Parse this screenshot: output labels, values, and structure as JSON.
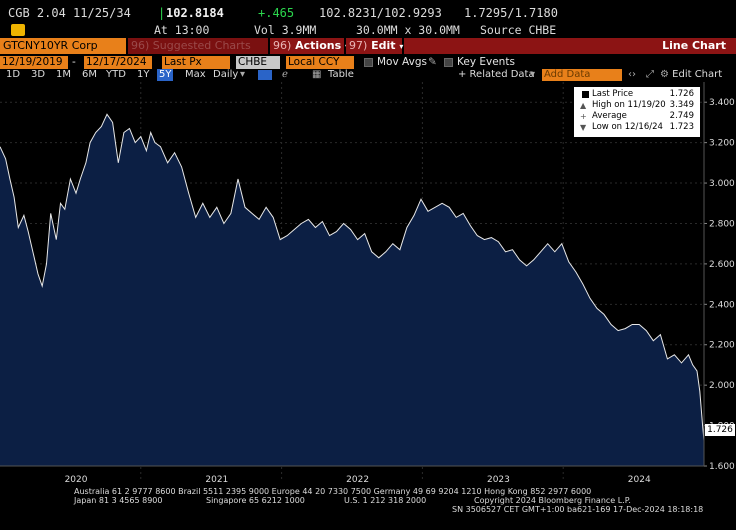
{
  "quote": {
    "security": "CGB 2.04 11/25/34",
    "price": "102.8184",
    "change": "+.465",
    "bid_ask": "102.8231/102.9293",
    "yields": "1.7295/1.7180",
    "time": "At 13:00",
    "volume": "Vol 3.9MM",
    "sizes": "30.0MM x 30.0MM",
    "source": "Source CHBE"
  },
  "toolbar": {
    "ticker": "GTCNY10YR Corp",
    "suggested": "96) Suggested Charts",
    "actions_num": "96)",
    "actions_label": "Actions",
    "edit_num": "97)",
    "edit_label": "Edit",
    "chart_type": "Line Chart"
  },
  "settings": {
    "start_date": "12/19/2019",
    "end_date": "12/17/2024",
    "field": "Last Px",
    "source": "CHBE",
    "currency": "Local CCY",
    "mov_avgs": "Mov Avgs",
    "key_events": "Key Events"
  },
  "ranges": {
    "items": [
      "1D",
      "3D",
      "1M",
      "6M",
      "YTD",
      "1Y",
      "5Y",
      "Max",
      "Daily"
    ],
    "active": "5Y",
    "table": "Table",
    "related": "+ Related Data",
    "add_data": "Add Data",
    "edit_chart": "Edit Chart"
  },
  "legend": {
    "last_label": "Last Price",
    "last_value": "1.726",
    "high_label": "High on 11/19/20",
    "high_value": "3.349",
    "avg_label": "Average",
    "avg_value": "2.749",
    "low_label": "Low on 12/16/24",
    "low_value": "1.723"
  },
  "last_tag": "1.726",
  "footer": {
    "line1": "Australia 61 2 9777 8600 Brazil 5511 2395 9000 Europe 44 20 7330 7500 Germany 49 69 9204 1210 Hong Kong 852 2977 6000",
    "line2a": "Japan 81 3 4565 8900",
    "line2b": "Singapore 65 6212 1000",
    "line2c": "U.S. 1 212 318 2000",
    "line2d": "Copyright 2024 Bloomberg Finance L.P.",
    "line3": "SN 3506527 CET  GMT+1:00 ba621-169 17-Dec-2024 18:18:18"
  },
  "colors": {
    "area_fill": "#0c1f44",
    "line": "#e8e8e8",
    "accent_orange": "#e8801a",
    "accent_red": "#8c1414",
    "active_blue": "#2a64c8"
  },
  "chart_data": {
    "type": "area",
    "title": "",
    "xlabel": "",
    "ylabel": "",
    "ylim": [
      1.6,
      3.5
    ],
    "yticks": [
      1.6,
      1.8,
      2.0,
      2.2,
      2.4,
      2.6,
      2.8,
      3.0,
      3.2,
      3.4
    ],
    "ytick_labels": [
      "1.600",
      "1.800",
      "2.000",
      "2.200",
      "2.400",
      "2.600",
      "2.800",
      "3.000",
      "3.200",
      "3.400"
    ],
    "xlim": [
      2019.96,
      2024.96
    ],
    "xticks": [
      2020.5,
      2021.5,
      2022.5,
      2023.5,
      2024.5
    ],
    "xtick_labels": [
      "2020",
      "2021",
      "2022",
      "2023",
      "2024"
    ],
    "grid": true,
    "series": [
      {
        "x": [
          2019.96,
          2020.0,
          2020.03,
          2020.06,
          2020.09,
          2020.13,
          2020.16,
          2020.2,
          2020.23,
          2020.26,
          2020.29,
          2020.32,
          2020.36,
          2020.39,
          2020.42,
          2020.46,
          2020.5,
          2020.53,
          2020.57,
          2020.6,
          2020.64,
          2020.68,
          2020.72,
          2020.76,
          2020.8,
          2020.84,
          2020.88,
          2020.92,
          2020.96,
          2021.0,
          2021.03,
          2021.06,
          2021.1,
          2021.15,
          2021.2,
          2021.25,
          2021.3,
          2021.35,
          2021.4,
          2021.45,
          2021.5,
          2021.55,
          2021.6,
          2021.65,
          2021.7,
          2021.75,
          2021.8,
          2021.85,
          2021.9,
          2021.95,
          2022.0,
          2022.05,
          2022.1,
          2022.15,
          2022.2,
          2022.25,
          2022.3,
          2022.35,
          2022.4,
          2022.45,
          2022.5,
          2022.55,
          2022.6,
          2022.65,
          2022.7,
          2022.75,
          2022.8,
          2022.85,
          2022.9,
          2022.95,
          2023.0,
          2023.05,
          2023.1,
          2023.15,
          2023.2,
          2023.25,
          2023.3,
          2023.35,
          2023.4,
          2023.45,
          2023.5,
          2023.55,
          2023.6,
          2023.65,
          2023.7,
          2023.75,
          2023.8,
          2023.85,
          2023.9,
          2023.95,
          2024.0,
          2024.05,
          2024.1,
          2024.15,
          2024.2,
          2024.25,
          2024.3,
          2024.35,
          2024.4,
          2024.45,
          2024.5,
          2024.55,
          2024.6,
          2024.65,
          2024.7,
          2024.75,
          2024.8,
          2024.85,
          2024.88,
          2024.91,
          2024.93,
          2024.95,
          2024.96
        ],
        "y": [
          3.18,
          3.12,
          3.02,
          2.93,
          2.78,
          2.84,
          2.76,
          2.64,
          2.55,
          2.49,
          2.6,
          2.85,
          2.72,
          2.9,
          2.87,
          3.02,
          2.95,
          3.02,
          3.1,
          3.2,
          3.25,
          3.28,
          3.34,
          3.3,
          3.1,
          3.25,
          3.27,
          3.2,
          3.23,
          3.16,
          3.25,
          3.2,
          3.18,
          3.1,
          3.15,
          3.08,
          2.95,
          2.83,
          2.9,
          2.83,
          2.88,
          2.8,
          2.85,
          3.02,
          2.88,
          2.85,
          2.82,
          2.88,
          2.83,
          2.72,
          2.74,
          2.77,
          2.8,
          2.82,
          2.78,
          2.81,
          2.74,
          2.76,
          2.8,
          2.77,
          2.72,
          2.75,
          2.66,
          2.63,
          2.66,
          2.7,
          2.67,
          2.78,
          2.84,
          2.92,
          2.86,
          2.88,
          2.9,
          2.88,
          2.83,
          2.85,
          2.79,
          2.74,
          2.72,
          2.73,
          2.71,
          2.66,
          2.67,
          2.62,
          2.59,
          2.62,
          2.66,
          2.7,
          2.66,
          2.7,
          2.61,
          2.56,
          2.5,
          2.43,
          2.38,
          2.35,
          2.3,
          2.27,
          2.28,
          2.3,
          2.3,
          2.27,
          2.22,
          2.25,
          2.13,
          2.15,
          2.11,
          2.15,
          2.1,
          2.07,
          1.97,
          1.8,
          1.726
        ]
      }
    ]
  }
}
